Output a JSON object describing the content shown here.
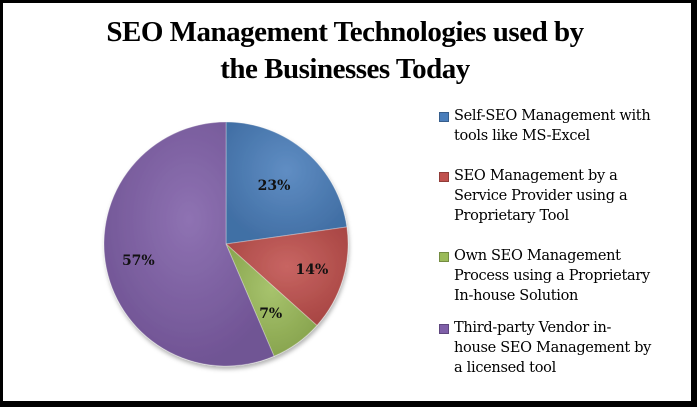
{
  "chart_data": {
    "type": "pie",
    "title": "SEO Management Technologies used by the Businesses Today",
    "title_lines": [
      "SEO Management Technologies used by",
      "the Businesses Today"
    ],
    "categories": [
      "Self-SEO Management with tools like MS-Excel",
      "SEO Management by a Service Provider using a Proprietary Tool",
      "Own SEO Management Process using a Proprietary In-house Solution",
      "Third-party Vendor in-house SEO Management by a licensed tool"
    ],
    "values": [
      23,
      14,
      7,
      57
    ],
    "data_labels": [
      "23%",
      "14%",
      "7%",
      "57%"
    ],
    "colors": [
      "#4a7ebb",
      "#c0504d",
      "#9bbb59",
      "#7f5fa8"
    ],
    "legend_position": "right",
    "legend_lines": [
      [
        "Self-SEO Management with",
        "tools like MS-Excel"
      ],
      [
        "SEO Management by a",
        "Service Provider using a",
        "Proprietary Tool"
      ],
      [
        "Own SEO Management",
        "Process using a Proprietary",
        "In-house Solution"
      ],
      [
        "Third-party Vendor in-",
        "house SEO Management by",
        "a licensed tool"
      ]
    ],
    "start_angle_deg": 0,
    "direction": "clockwise"
  }
}
